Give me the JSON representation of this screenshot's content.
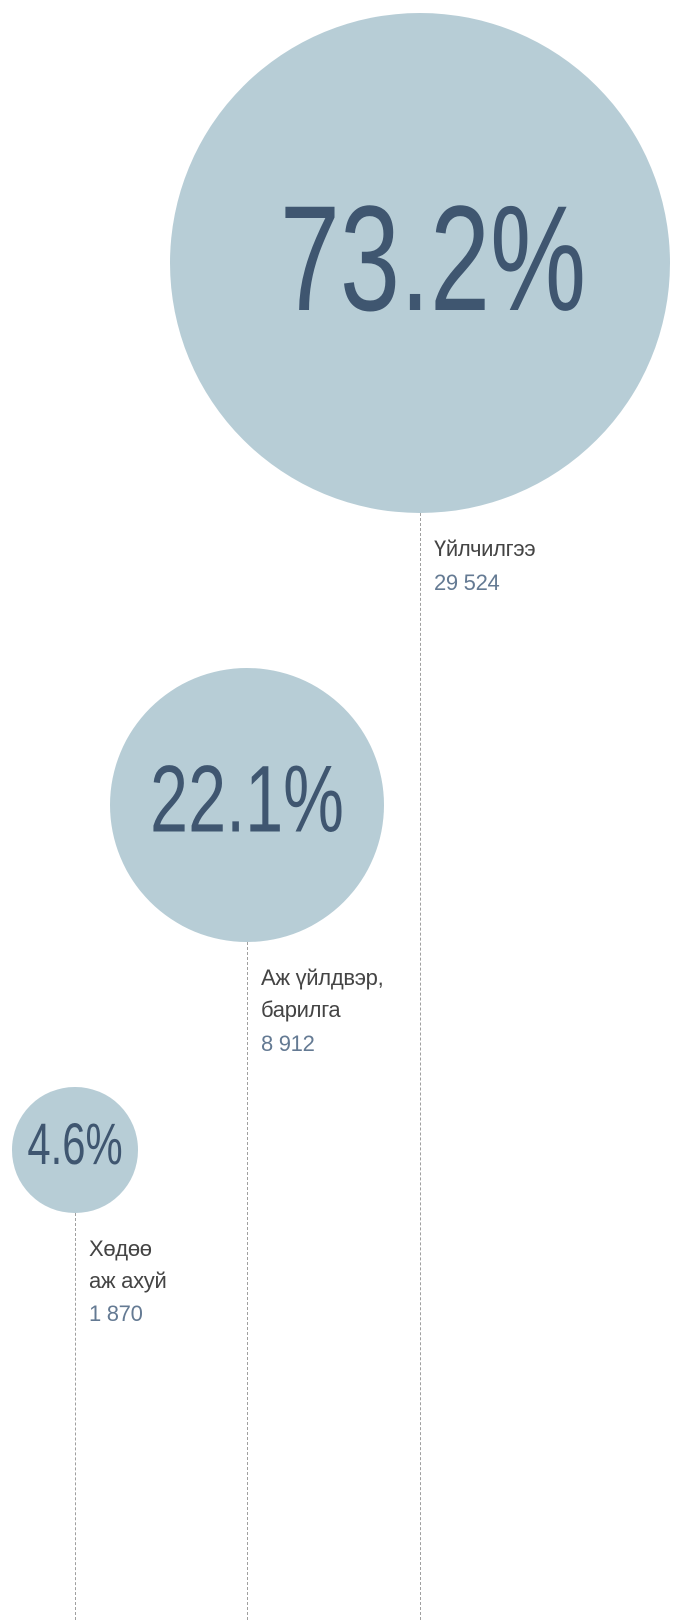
{
  "chart_data": {
    "type": "bubble",
    "categories": [
      "Үйлчилгээ",
      "Аж үйлдвэр, барилга",
      "Хөдөө аж ахуй"
    ],
    "values": [
      73.2,
      22.1,
      4.6
    ],
    "value_labels": [
      "73.2%",
      "22.1%",
      "4.6%"
    ],
    "counts": [
      29524,
      8912,
      1870
    ],
    "count_labels": [
      "29 524",
      "8 912",
      "1 870"
    ],
    "color": "#b7cdd6"
  }
}
